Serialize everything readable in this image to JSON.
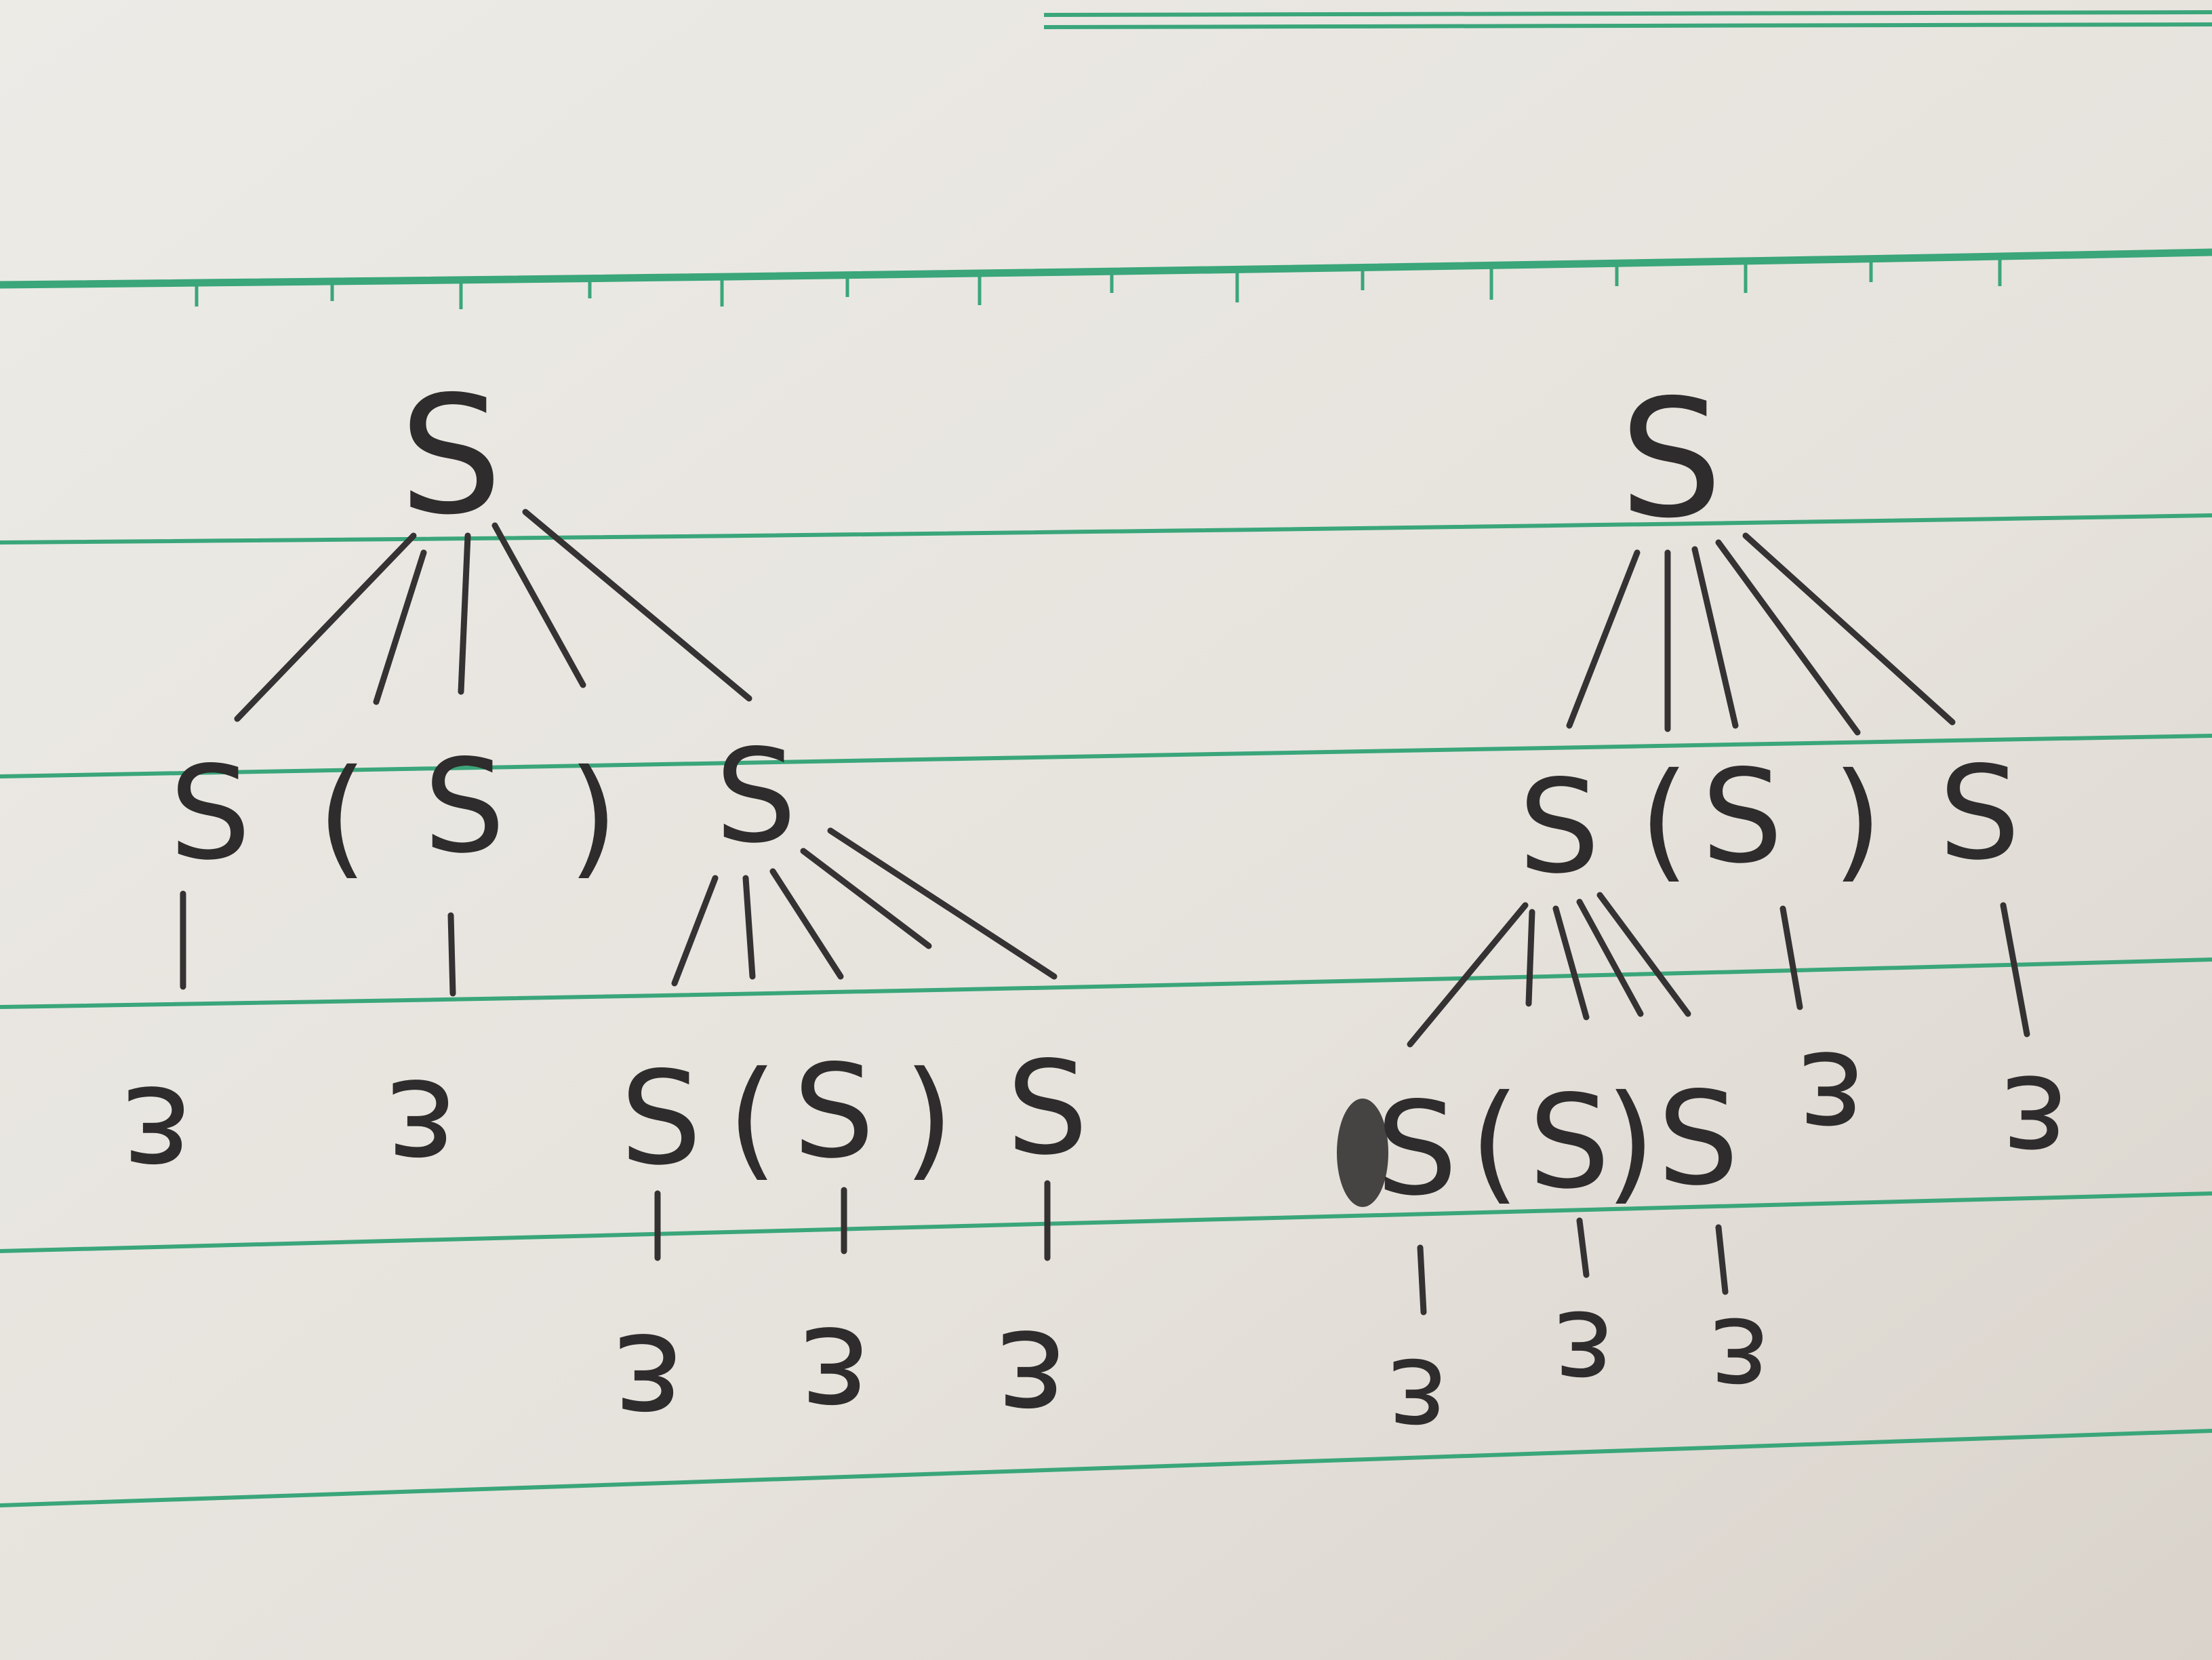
{
  "trees": [
    {
      "id": "tree-left",
      "root": "S",
      "level1": [
        "S",
        "(",
        "S",
        ")",
        "S"
      ],
      "level1_leaves": [
        "ε",
        "ε"
      ],
      "level2": [
        "S",
        "(",
        "S",
        ")",
        "S"
      ],
      "level2_leaves": [
        "ε",
        "ε",
        "ε"
      ]
    },
    {
      "id": "tree-right",
      "root": "S",
      "level1": [
        "S",
        "(",
        "S",
        ")",
        "S"
      ],
      "level1_leaves": [
        "ε",
        "ε"
      ],
      "level2": [
        "S",
        "(",
        "S",
        ")",
        "S"
      ],
      "level2_leaves": [
        "ε",
        "ε",
        "ε"
      ]
    }
  ],
  "colors": {
    "paper": "#e7e3dd",
    "ruling": "#3aa67a",
    "pencil": "#2e2c2c"
  }
}
